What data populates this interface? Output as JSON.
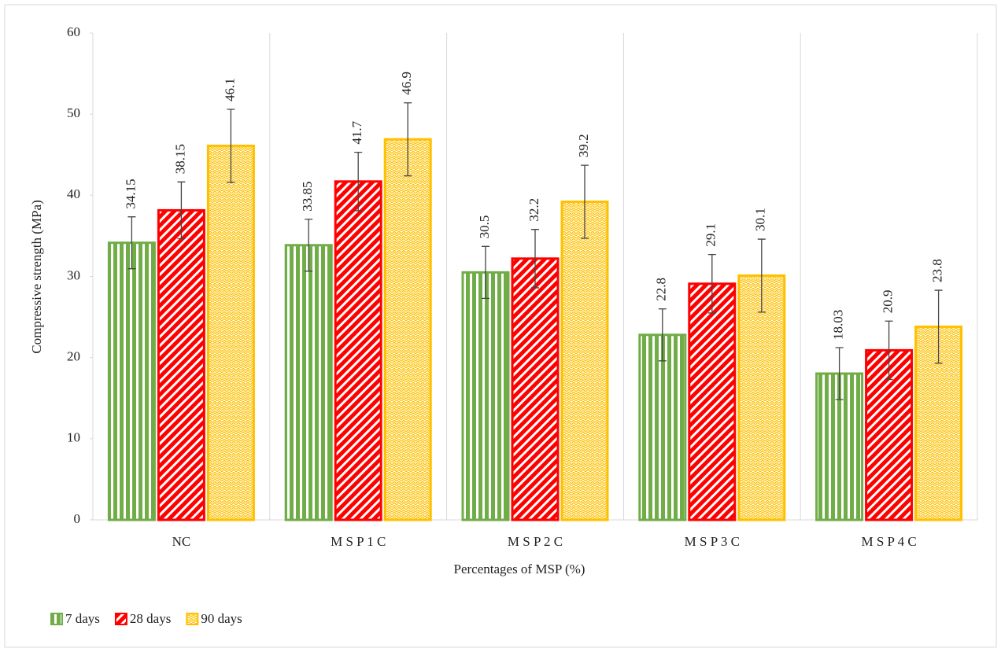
{
  "chart_data": {
    "type": "bar",
    "x_label": "Percentages of MSP (%)",
    "y_label": "Compressive strength (MPa)",
    "categories": [
      "NC",
      "M S P 1 C",
      "M S P 2 C",
      "M S P 3 C",
      "M S P 4 C"
    ],
    "series": [
      {
        "name": "7 days",
        "color": "#70ad47",
        "values": [
          34.15,
          33.85,
          30.5,
          22.8,
          18.03
        ],
        "errors": [
          3.2,
          3.2,
          3.2,
          3.2,
          3.2
        ]
      },
      {
        "name": "28 days",
        "color": "#ff0000",
        "values": [
          38.15,
          41.7,
          32.2,
          29.1,
          20.9
        ],
        "errors": [
          3.5,
          3.6,
          3.6,
          3.6,
          3.6
        ]
      },
      {
        "name": "90 days",
        "color": "#ffc000",
        "values": [
          46.1,
          46.9,
          39.2,
          30.1,
          23.8
        ],
        "errors": [
          4.5,
          4.5,
          4.5,
          4.5,
          4.5
        ]
      }
    ],
    "ylim": [
      0,
      60
    ],
    "yticks": [
      0,
      10,
      20,
      30,
      40,
      50,
      60
    ],
    "legend": "bottom-left"
  }
}
